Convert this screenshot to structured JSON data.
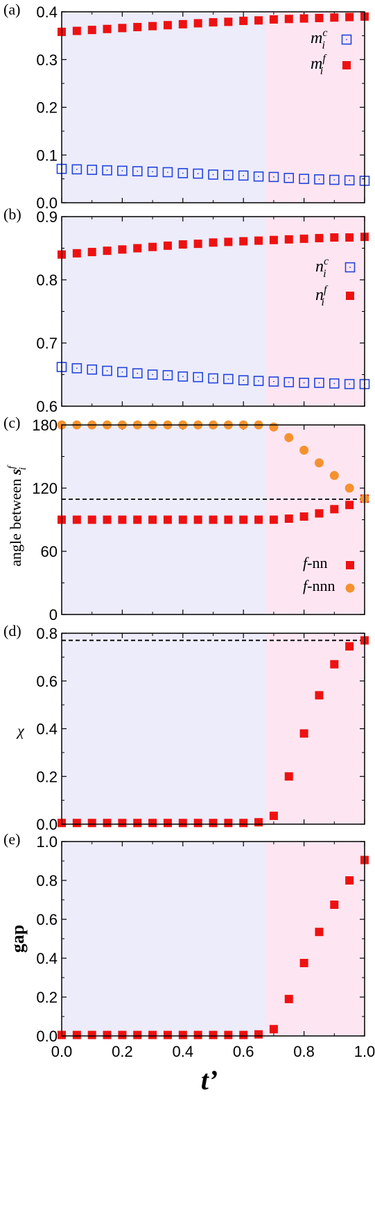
{
  "colors": {
    "ordered_region": "#ececfb",
    "disordered_region": "#fde6f1",
    "red_marker": "#ee1111",
    "blue_marker": "#2244dd",
    "orange_marker": "#f5922f"
  },
  "x_axis": {
    "title": "t’",
    "ticks": [
      "0.0",
      "0.2",
      "0.4",
      "0.6",
      "0.8",
      "1.0"
    ],
    "range": [
      0,
      1
    ],
    "region_boundary": 0.675
  },
  "chart_data": [
    {
      "panel": "(a)",
      "type": "scatter",
      "ylabel": "",
      "ylim": [
        0,
        0.4
      ],
      "yticks": [
        "0.0",
        "0.1",
        "0.2",
        "0.3",
        "0.4"
      ],
      "legend_placement": "top-right",
      "series": [
        {
          "name": "m_i^c",
          "legend_base": "m",
          "legend_sup": "c",
          "legend_sub": "i",
          "marker": "open-square",
          "color": "#2244dd",
          "x": [
            0,
            0.05,
            0.1,
            0.15,
            0.2,
            0.25,
            0.3,
            0.35,
            0.4,
            0.45,
            0.5,
            0.55,
            0.6,
            0.65,
            0.7,
            0.75,
            0.8,
            0.85,
            0.9,
            0.95,
            1.0
          ],
          "y": [
            0.071,
            0.07,
            0.069,
            0.068,
            0.067,
            0.066,
            0.065,
            0.064,
            0.062,
            0.061,
            0.059,
            0.058,
            0.057,
            0.055,
            0.054,
            0.052,
            0.05,
            0.049,
            0.048,
            0.047,
            0.046
          ]
        },
        {
          "name": "m_i^f",
          "legend_base": "m",
          "legend_sup": "f",
          "legend_sub": "i",
          "marker": "filled-square",
          "color": "#ee1111",
          "x": [
            0,
            0.05,
            0.1,
            0.15,
            0.2,
            0.25,
            0.3,
            0.35,
            0.4,
            0.45,
            0.5,
            0.55,
            0.6,
            0.65,
            0.7,
            0.75,
            0.8,
            0.85,
            0.9,
            0.95,
            1.0
          ],
          "y": [
            0.358,
            0.36,
            0.362,
            0.364,
            0.366,
            0.368,
            0.37,
            0.372,
            0.374,
            0.376,
            0.378,
            0.379,
            0.381,
            0.382,
            0.384,
            0.385,
            0.386,
            0.387,
            0.388,
            0.389,
            0.39
          ]
        }
      ]
    },
    {
      "panel": "(b)",
      "type": "scatter",
      "ylabel": "",
      "ylim": [
        0.6,
        0.9
      ],
      "yticks": [
        "0.6",
        "0.7",
        "0.8",
        "0.9"
      ],
      "legend_placement": "right",
      "series": [
        {
          "name": "n_i^c",
          "legend_base": "n",
          "legend_sup": "c",
          "legend_sub": "i",
          "marker": "open-square",
          "color": "#2244dd",
          "x": [
            0,
            0.05,
            0.1,
            0.15,
            0.2,
            0.25,
            0.3,
            0.35,
            0.4,
            0.45,
            0.5,
            0.55,
            0.6,
            0.65,
            0.7,
            0.75,
            0.8,
            0.85,
            0.9,
            0.95,
            1.0
          ],
          "y": [
            0.662,
            0.66,
            0.658,
            0.656,
            0.654,
            0.652,
            0.65,
            0.649,
            0.647,
            0.646,
            0.644,
            0.643,
            0.641,
            0.64,
            0.639,
            0.638,
            0.637,
            0.637,
            0.636,
            0.635,
            0.635
          ]
        },
        {
          "name": "n_i^f",
          "legend_base": "n",
          "legend_sup": "f",
          "legend_sub": "i",
          "marker": "filled-square",
          "color": "#ee1111",
          "x": [
            0,
            0.05,
            0.1,
            0.15,
            0.2,
            0.25,
            0.3,
            0.35,
            0.4,
            0.45,
            0.5,
            0.55,
            0.6,
            0.65,
            0.7,
            0.75,
            0.8,
            0.85,
            0.9,
            0.95,
            1.0
          ],
          "y": [
            0.84,
            0.842,
            0.844,
            0.846,
            0.848,
            0.85,
            0.852,
            0.854,
            0.856,
            0.857,
            0.859,
            0.86,
            0.861,
            0.862,
            0.863,
            0.864,
            0.865,
            0.866,
            0.867,
            0.867,
            0.868
          ]
        }
      ]
    },
    {
      "panel": "(c)",
      "type": "scatter",
      "ylabel": "angle between s_i^f",
      "ylabel_main": "angle between ",
      "ylabel_sym": "s",
      "ylabel_sup": "f",
      "ylabel_sub": "i",
      "ylim": [
        0,
        180
      ],
      "yticks": [
        "0",
        "60",
        "120",
        "180"
      ],
      "reference_line": 109.47,
      "legend_placement": "bottom-right",
      "series": [
        {
          "name": "f-nn",
          "legend_italic": "f",
          "legend_rest": "-nn",
          "marker": "filled-square",
          "color": "#ee1111",
          "x": [
            0,
            0.05,
            0.1,
            0.15,
            0.2,
            0.25,
            0.3,
            0.35,
            0.4,
            0.45,
            0.5,
            0.55,
            0.6,
            0.65,
            0.7,
            0.75,
            0.8,
            0.85,
            0.9,
            0.95,
            1.0
          ],
          "y": [
            90,
            90,
            90,
            90,
            90,
            90,
            90,
            90,
            90,
            90,
            90,
            90,
            90,
            90,
            90,
            91,
            93,
            96,
            100,
            104,
            110
          ]
        },
        {
          "name": "f-nnn",
          "legend_italic": "f",
          "legend_rest": "-nnn",
          "marker": "filled-circle",
          "color": "#f5922f",
          "x": [
            0,
            0.05,
            0.1,
            0.15,
            0.2,
            0.25,
            0.3,
            0.35,
            0.4,
            0.45,
            0.5,
            0.55,
            0.6,
            0.65,
            0.7,
            0.75,
            0.8,
            0.85,
            0.9,
            0.95,
            1.0
          ],
          "y": [
            180,
            180,
            180,
            180,
            180,
            180,
            180,
            180,
            180,
            180,
            180,
            180,
            180,
            180,
            178,
            168,
            156,
            144,
            132,
            120,
            110
          ]
        }
      ]
    },
    {
      "panel": "(d)",
      "type": "scatter",
      "ylabel": "χ",
      "ylim": [
        0,
        0.8
      ],
      "yticks": [
        "0.0",
        "0.2",
        "0.4",
        "0.6",
        "0.8"
      ],
      "reference_line": 0.77,
      "series": [
        {
          "name": "",
          "marker": "filled-square",
          "color": "#ee1111",
          "x": [
            0,
            0.05,
            0.1,
            0.15,
            0.2,
            0.25,
            0.3,
            0.35,
            0.4,
            0.45,
            0.5,
            0.55,
            0.6,
            0.65,
            0.7,
            0.75,
            0.8,
            0.85,
            0.9,
            0.95,
            1.0
          ],
          "y": [
            0.005,
            0.005,
            0.005,
            0.005,
            0.005,
            0.005,
            0.005,
            0.005,
            0.005,
            0.005,
            0.005,
            0.005,
            0.005,
            0.008,
            0.035,
            0.2,
            0.38,
            0.54,
            0.67,
            0.745,
            0.77
          ]
        }
      ]
    },
    {
      "panel": "(e)",
      "type": "scatter",
      "ylabel": "gap",
      "ylim": [
        0,
        1
      ],
      "yticks": [
        "0.0",
        "0.2",
        "0.4",
        "0.6",
        "0.8",
        "1.0"
      ],
      "series": [
        {
          "name": "",
          "marker": "filled-square",
          "color": "#ee1111",
          "x": [
            0,
            0.05,
            0.1,
            0.15,
            0.2,
            0.25,
            0.3,
            0.35,
            0.4,
            0.45,
            0.5,
            0.55,
            0.6,
            0.65,
            0.7,
            0.75,
            0.8,
            0.85,
            0.9,
            0.95,
            1.0
          ],
          "y": [
            0.005,
            0.005,
            0.005,
            0.005,
            0.005,
            0.005,
            0.005,
            0.005,
            0.005,
            0.005,
            0.005,
            0.005,
            0.005,
            0.008,
            0.035,
            0.19,
            0.375,
            0.535,
            0.675,
            0.8,
            0.905
          ]
        }
      ]
    }
  ]
}
